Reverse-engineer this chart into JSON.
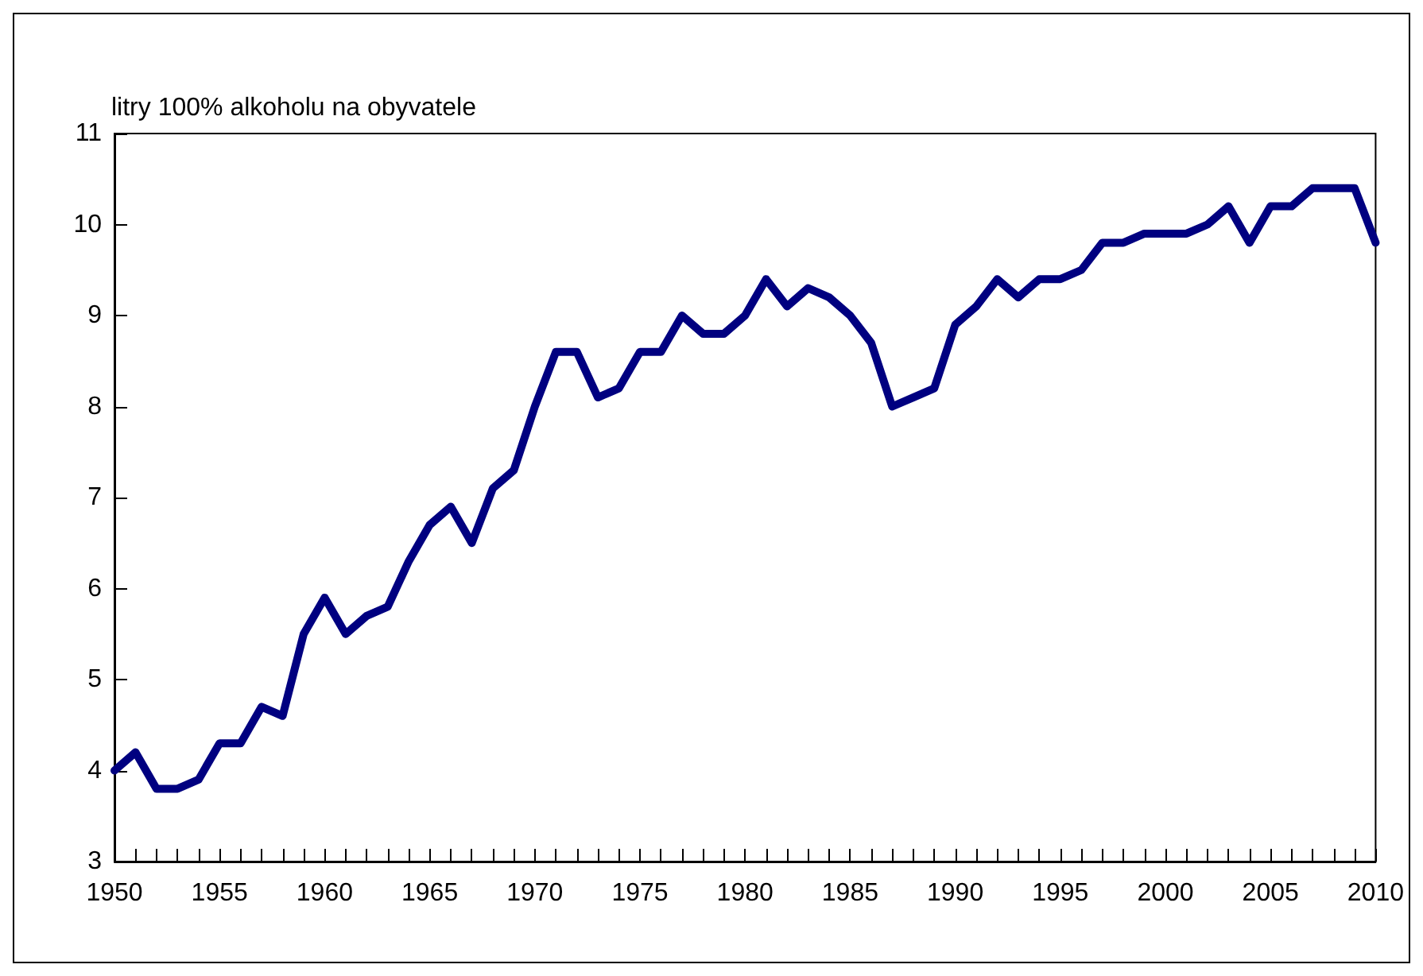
{
  "chart_data": {
    "type": "line",
    "ylabel": "litry 100% alkoholu na obyvatele",
    "x": [
      1950,
      1951,
      1952,
      1953,
      1954,
      1955,
      1956,
      1957,
      1958,
      1959,
      1960,
      1961,
      1962,
      1963,
      1964,
      1965,
      1966,
      1967,
      1968,
      1969,
      1970,
      1971,
      1972,
      1973,
      1974,
      1975,
      1976,
      1977,
      1978,
      1979,
      1980,
      1981,
      1982,
      1983,
      1984,
      1985,
      1986,
      1987,
      1988,
      1989,
      1990,
      1991,
      1992,
      1993,
      1994,
      1995,
      1996,
      1997,
      1998,
      1999,
      2000,
      2001,
      2002,
      2003,
      2004,
      2005,
      2006,
      2007,
      2008,
      2009,
      2010
    ],
    "series": [
      {
        "color": "#000080",
        "values": [
          4.0,
          4.2,
          3.8,
          3.8,
          3.9,
          4.3,
          4.3,
          4.7,
          4.6,
          5.5,
          5.9,
          5.5,
          5.7,
          5.8,
          6.3,
          6.7,
          6.9,
          6.5,
          7.1,
          7.3,
          8.0,
          8.6,
          8.6,
          8.1,
          8.2,
          8.6,
          8.6,
          9.0,
          8.8,
          8.8,
          9.0,
          9.4,
          9.1,
          9.3,
          9.2,
          9.0,
          8.7,
          8.0,
          8.1,
          8.2,
          8.9,
          9.1,
          9.4,
          9.2,
          9.4,
          9.4,
          9.5,
          9.8,
          9.8,
          9.9,
          9.9,
          9.9,
          10.0,
          10.2,
          9.8,
          10.2,
          10.2,
          10.4,
          10.4,
          10.4,
          9.8
        ]
      }
    ],
    "xlim": [
      1950,
      2010
    ],
    "xticks": [
      1950,
      {
        "value": 1951,
        "label": null
      },
      {
        "value": 1952,
        "label": null
      },
      {
        "value": 1953,
        "label": null
      },
      {
        "value": 1954,
        "label": null
      },
      1955,
      {
        "value": 1956,
        "label": null
      },
      {
        "value": 1957,
        "label": null
      },
      {
        "value": 1958,
        "label": null
      },
      {
        "value": 1959,
        "label": null
      },
      1960,
      {
        "value": 1961,
        "label": null
      },
      {
        "value": 1962,
        "label": null
      },
      {
        "value": 1963,
        "label": null
      },
      {
        "value": 1964,
        "label": null
      },
      1965,
      {
        "value": 1966,
        "label": null
      },
      {
        "value": 1967,
        "label": null
      },
      {
        "value": 1968,
        "label": null
      },
      {
        "value": 1969,
        "label": null
      },
      1970,
      {
        "value": 1971,
        "label": null
      },
      {
        "value": 1972,
        "label": null
      },
      {
        "value": 1973,
        "label": null
      },
      {
        "value": 1974,
        "label": null
      },
      1975,
      {
        "value": 1976,
        "label": null
      },
      {
        "value": 1977,
        "label": null
      },
      {
        "value": 1978,
        "label": null
      },
      {
        "value": 1979,
        "label": null
      },
      1980,
      {
        "value": 1981,
        "label": null
      },
      {
        "value": 1982,
        "label": null
      },
      {
        "value": 1983,
        "label": null
      },
      {
        "value": 1984,
        "label": null
      },
      1985,
      {
        "value": 1986,
        "label": null
      },
      {
        "value": 1987,
        "label": null
      },
      {
        "value": 1988,
        "label": null
      },
      {
        "value": 1989,
        "label": null
      },
      1990,
      {
        "value": 1991,
        "label": null
      },
      {
        "value": 1992,
        "label": null
      },
      {
        "value": 1993,
        "label": null
      },
      {
        "value": 1994,
        "label": null
      },
      1995,
      {
        "value": 1996,
        "label": null
      },
      {
        "value": 1997,
        "label": null
      },
      {
        "value": 1998,
        "label": null
      },
      {
        "value": 1999,
        "label": null
      },
      2000,
      {
        "value": 2001,
        "label": null
      },
      {
        "value": 2002,
        "label": null
      },
      {
        "value": 2003,
        "label": null
      },
      {
        "value": 2004,
        "label": null
      },
      2005,
      {
        "value": 2006,
        "label": null
      },
      {
        "value": 2007,
        "label": null
      },
      {
        "value": 2008,
        "label": null
      },
      {
        "value": 2009,
        "label": null
      },
      2010
    ],
    "ylim": [
      3,
      11
    ],
    "yticks": [
      3,
      4,
      5,
      6,
      7,
      8,
      9,
      10,
      11
    ],
    "marker": "none",
    "line_style": "solid"
  }
}
